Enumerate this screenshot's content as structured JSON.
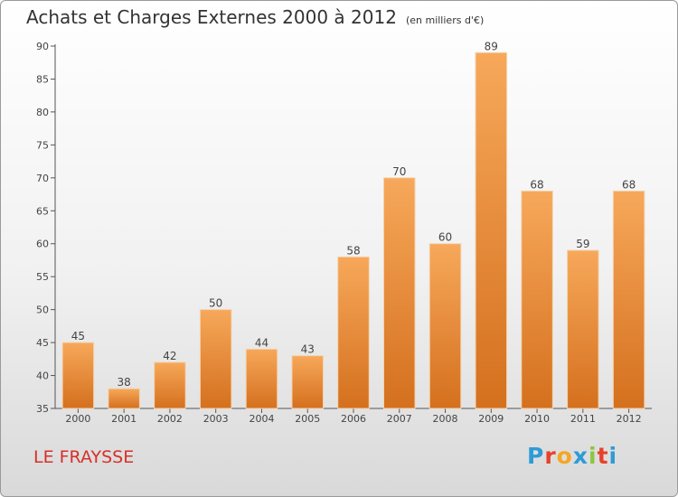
{
  "header": {
    "title": "Achats et Charges Externes 2000 à 2012",
    "subtitle": "(en milliers d'€)"
  },
  "footer": {
    "commune_name": "LE FRAYSSE",
    "brand_letters": [
      "P",
      "r",
      "o",
      "x",
      "i",
      "t",
      "i"
    ],
    "brand_colors": [
      "#2e9bd6",
      "#e8422a",
      "#f5a623",
      "#2e9bd6",
      "#8cc63f",
      "#e8422a",
      "#2e9bd6"
    ]
  },
  "colors": {
    "bar_light": "#f7a85a",
    "bar_dark": "#d4701e",
    "axis": "#555555",
    "grid": "#cccccc",
    "commune": "#d6302a"
  },
  "chart_data": {
    "type": "bar",
    "categories": [
      "2000",
      "2001",
      "2002",
      "2003",
      "2004",
      "2005",
      "2006",
      "2007",
      "2008",
      "2009",
      "2010",
      "2011",
      "2012"
    ],
    "values": [
      45,
      38,
      42,
      50,
      44,
      43,
      58,
      70,
      60,
      89,
      68,
      59,
      68
    ],
    "data_labels": [
      "45",
      "38",
      "42",
      "50",
      "44",
      "43",
      "58",
      "70",
      "60",
      "89",
      "68",
      "59",
      "68"
    ],
    "title": "Achats et Charges Externes 2000 à 2012",
    "subtitle": "(en milliers d'€)",
    "xlabel": "",
    "ylabel": "",
    "ylim": [
      35,
      90
    ],
    "yticks": [
      "35",
      "40",
      "45",
      "50",
      "55",
      "60",
      "65",
      "70",
      "75",
      "80",
      "85",
      "90"
    ],
    "grid": false,
    "legend": "none"
  }
}
